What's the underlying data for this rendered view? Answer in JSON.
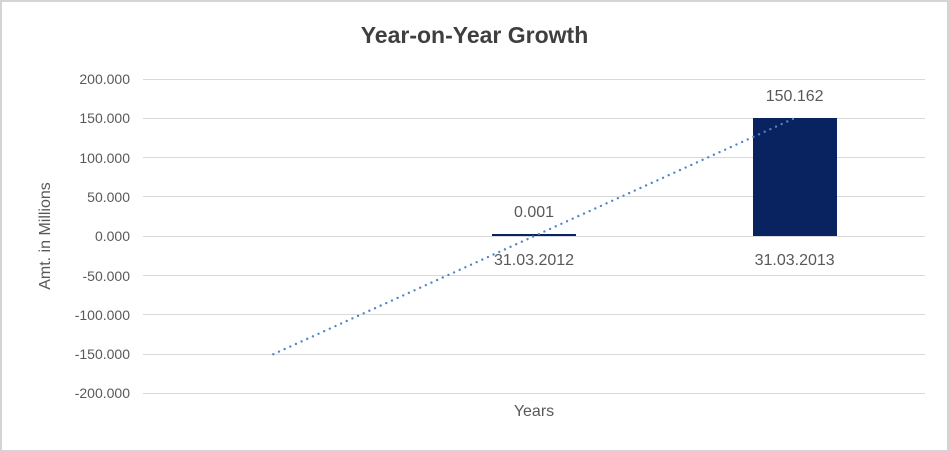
{
  "window": {
    "background": "#ffffff",
    "frame_border_color": "#d4d4d4"
  },
  "chart_data": {
    "type": "bar",
    "title": "Year-on-Year Growth",
    "xlabel": "Years",
    "ylabel": "Amt. in Millions",
    "categories": [
      "",
      "31.03.2012",
      "31.03.2013"
    ],
    "values": [
      null,
      0.001,
      150.162
    ],
    "data_labels": [
      null,
      "0.001",
      "150.162"
    ],
    "ylim": [
      -200,
      200
    ],
    "ytick_labels": [
      "200.000",
      "150.000",
      "100.000",
      "50.000",
      "0.000",
      "-50.000",
      "-100.000",
      "-150.000",
      "-200.000"
    ],
    "ytick_values": [
      200,
      150,
      100,
      50,
      0,
      -50,
      -100,
      -150,
      -200
    ],
    "grid": true,
    "legend": false,
    "colors": {
      "bar": "#08235f",
      "trendline": "#4e86c8",
      "gridline": "#d9d9d9",
      "tick_text": "#595959",
      "label_text": "#595959",
      "title_text": "#3f3f3f"
    },
    "trendline": {
      "type": "linear",
      "line_style": "dotted",
      "start": {
        "category_index": 0,
        "value": -150.16
      },
      "end": {
        "category_index": 2,
        "value": 150.162
      }
    }
  }
}
